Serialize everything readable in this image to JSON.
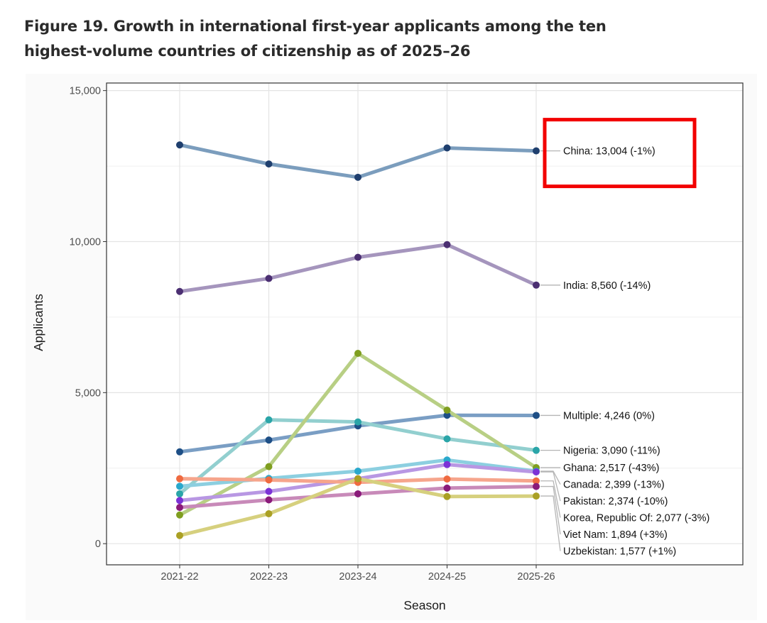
{
  "figure": {
    "title_line1": "Figure 19. Growth in international first-year applicants among the ten",
    "title_line2": "highest-volume countries of citizenship as of 2025–26"
  },
  "chart_data": {
    "type": "line",
    "title": "Figure 19. Growth in international first-year applicants among the ten highest-volume countries of citizenship as of 2025–26",
    "xlabel": "Season",
    "ylabel": "Applicants",
    "categories": [
      "2021-22",
      "2022-23",
      "2023-24",
      "2024-25",
      "2025-26"
    ],
    "ylim": [
      -700,
      15250
    ],
    "yticks": [
      0,
      5000,
      10000,
      15000
    ],
    "ytick_labels": [
      "0",
      "5,000",
      "10,000",
      "15,000"
    ],
    "grid": true,
    "series": [
      {
        "name": "China",
        "values": [
          13200,
          12570,
          12130,
          13100,
          13004
        ],
        "label": "China: 13,004 (-1%)",
        "line_color": "#7b9dbd",
        "point_color": "#1f3f6e"
      },
      {
        "name": "India",
        "values": [
          8350,
          8780,
          9480,
          9900,
          8560
        ],
        "label": "India: 8,560 (-14%)",
        "line_color": "#a595bd",
        "point_color": "#4b2f72"
      },
      {
        "name": "Multiple",
        "values": [
          3040,
          3430,
          3900,
          4250,
          4246
        ],
        "label": "Multiple: 4,246 (0%)",
        "line_color": "#7a9ec4",
        "point_color": "#1e4f86"
      },
      {
        "name": "Nigeria",
        "values": [
          1650,
          4100,
          4030,
          3470,
          3090
        ],
        "label": "Nigeria: 3,090 (-11%)",
        "line_color": "#92cfcf",
        "point_color": "#2aa5a8"
      },
      {
        "name": "Ghana",
        "values": [
          950,
          2550,
          6300,
          4420,
          2517
        ],
        "label": "Ghana: 2,517 (-43%)",
        "line_color": "#b8cf84",
        "point_color": "#7f9e1f"
      },
      {
        "name": "Canada",
        "values": [
          1900,
          2160,
          2400,
          2770,
          2399
        ],
        "label": "Canada: 2,399 (-13%)",
        "line_color": "#8ccfe0",
        "point_color": "#29a8cc"
      },
      {
        "name": "Pakistan",
        "values": [
          1430,
          1730,
          2150,
          2620,
          2374
        ],
        "label": "Pakistan: 2,374 (-10%)",
        "line_color": "#b897e3",
        "point_color": "#7c32d6"
      },
      {
        "name": "Korea, Republic Of",
        "values": [
          2150,
          2110,
          2030,
          2140,
          2077
        ],
        "label": "Korea, Republic Of: 2,077 (-3%)",
        "line_color": "#f6a58c",
        "point_color": "#ef6a40"
      },
      {
        "name": "Viet Nam",
        "values": [
          1200,
          1450,
          1650,
          1840,
          1894
        ],
        "label": "Viet Nam: 1,894 (+3%)",
        "line_color": "#c88ab9",
        "point_color": "#8a1a7a"
      },
      {
        "name": "Uzbekistan",
        "values": [
          270,
          990,
          2150,
          1560,
          1577
        ],
        "label": "Uzbekistan: 1,577 (+1%)",
        "line_color": "#d6d07e",
        "point_color": "#aaa024"
      }
    ],
    "highlight": "China"
  }
}
